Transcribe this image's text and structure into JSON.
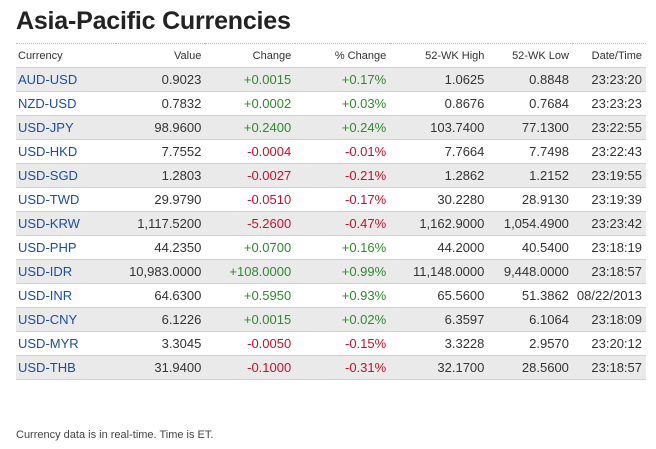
{
  "title": "Asia-Pacific Currencies",
  "colors": {
    "positive": "#2e8b2e",
    "negative": "#c8102e",
    "link": "#1a4ea0"
  },
  "columns": [
    "Currency",
    "Value",
    "Change",
    "% Change",
    "52-WK High",
    "52-WK Low",
    "Date/Time"
  ],
  "rows": [
    {
      "currency": "AUD-USD",
      "value": "0.9023",
      "change": "+0.0015",
      "pct": "+0.17%",
      "high": "1.0625",
      "low": "0.8848",
      "time": "23:23:20",
      "dir": "pos"
    },
    {
      "currency": "NZD-USD",
      "value": "0.7832",
      "change": "+0.0002",
      "pct": "+0.03%",
      "high": "0.8676",
      "low": "0.7684",
      "time": "23:23:23",
      "dir": "pos"
    },
    {
      "currency": "USD-JPY",
      "value": "98.9600",
      "change": "+0.2400",
      "pct": "+0.24%",
      "high": "103.7400",
      "low": "77.1300",
      "time": "23:22:55",
      "dir": "pos"
    },
    {
      "currency": "USD-HKD",
      "value": "7.7552",
      "change": "-0.0004",
      "pct": "-0.01%",
      "high": "7.7664",
      "low": "7.7498",
      "time": "23:22:43",
      "dir": "neg"
    },
    {
      "currency": "USD-SGD",
      "value": "1.2803",
      "change": "-0.0027",
      "pct": "-0.21%",
      "high": "1.2862",
      "low": "1.2152",
      "time": "23:19:55",
      "dir": "neg"
    },
    {
      "currency": "USD-TWD",
      "value": "29.9790",
      "change": "-0.0510",
      "pct": "-0.17%",
      "high": "30.2280",
      "low": "28.9130",
      "time": "23:19:39",
      "dir": "neg"
    },
    {
      "currency": "USD-KRW",
      "value": "1,117.5200",
      "change": "-5.2600",
      "pct": "-0.47%",
      "high": "1,162.9000",
      "low": "1,054.4900",
      "time": "23:23:42",
      "dir": "neg"
    },
    {
      "currency": "USD-PHP",
      "value": "44.2350",
      "change": "+0.0700",
      "pct": "+0.16%",
      "high": "44.2000",
      "low": "40.5400",
      "time": "23:18:19",
      "dir": "pos"
    },
    {
      "currency": "USD-IDR",
      "value": "10,983.0000",
      "change": "+108.0000",
      "pct": "+0.99%",
      "high": "11,148.0000",
      "low": "9,448.0000",
      "time": "23:18:57",
      "dir": "pos"
    },
    {
      "currency": "USD-INR",
      "value": "64.6300",
      "change": "+0.5950",
      "pct": "+0.93%",
      "high": "65.5600",
      "low": "51.3862",
      "time": "08/22/2013",
      "dir": "pos"
    },
    {
      "currency": "USD-CNY",
      "value": "6.1226",
      "change": "+0.0015",
      "pct": "+0.02%",
      "high": "6.3597",
      "low": "6.1064",
      "time": "23:18:09",
      "dir": "pos"
    },
    {
      "currency": "USD-MYR",
      "value": "3.3045",
      "change": "-0.0050",
      "pct": "-0.15%",
      "high": "3.3228",
      "low": "2.9570",
      "time": "23:20:12",
      "dir": "neg"
    },
    {
      "currency": "USD-THB",
      "value": "31.9400",
      "change": "-0.1000",
      "pct": "-0.31%",
      "high": "32.1700",
      "low": "28.5600",
      "time": "23:18:57",
      "dir": "neg"
    }
  ],
  "footnote": "Currency data is in real-time. Time is ET."
}
